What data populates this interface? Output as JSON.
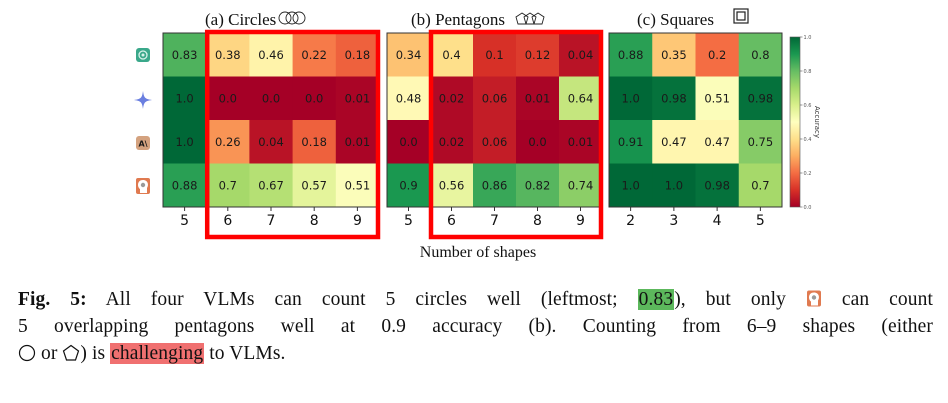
{
  "chart_data": [
    {
      "type": "heatmap",
      "title": "(a) Circles",
      "title_icon": "overlapping-circles-icon",
      "categories": [
        "5",
        "6",
        "7",
        "8",
        "9"
      ],
      "rows": [
        "gpt-model",
        "gemini-model",
        "claude-model",
        "sonnet-model"
      ],
      "values": [
        [
          0.83,
          0.38,
          0.46,
          0.22,
          0.18
        ],
        [
          1.0,
          0.0,
          0.0,
          0.0,
          0.01
        ],
        [
          1.0,
          0.26,
          0.04,
          0.18,
          0.01
        ],
        [
          0.88,
          0.7,
          0.67,
          0.57,
          0.51
        ]
      ],
      "labels": [
        [
          "0.83",
          "0.38",
          "0.46",
          "0.22",
          "0.18"
        ],
        [
          "1.0",
          "0.0",
          "0.0",
          "0.0",
          "0.01"
        ],
        [
          "1.0",
          "0.26",
          "0.04",
          "0.18",
          "0.01"
        ],
        [
          "0.88",
          "0.7",
          "0.67",
          "0.57",
          "0.51"
        ]
      ],
      "highlight_columns": [
        "6",
        "7",
        "8",
        "9"
      ]
    },
    {
      "type": "heatmap",
      "title": "(b) Pentagons",
      "title_icon": "overlapping-pentagons-icon",
      "categories": [
        "5",
        "6",
        "7",
        "8",
        "9"
      ],
      "rows": [
        "gpt-model",
        "gemini-model",
        "claude-model",
        "sonnet-model"
      ],
      "values": [
        [
          0.34,
          0.4,
          0.1,
          0.12,
          0.04
        ],
        [
          0.48,
          0.02,
          0.06,
          0.01,
          0.64
        ],
        [
          0.0,
          0.02,
          0.06,
          0.0,
          0.01
        ],
        [
          0.9,
          0.56,
          0.86,
          0.82,
          0.74
        ]
      ],
      "labels": [
        [
          "0.34",
          "0.4",
          "0.1",
          "0.12",
          "0.04"
        ],
        [
          "0.48",
          "0.02",
          "0.06",
          "0.01",
          "0.64"
        ],
        [
          "0.0",
          "0.02",
          "0.06",
          "0.0",
          "0.01"
        ],
        [
          "0.9",
          "0.56",
          "0.86",
          "0.82",
          "0.74"
        ]
      ],
      "highlight_columns": [
        "6",
        "7",
        "8",
        "9"
      ]
    },
    {
      "type": "heatmap",
      "title": "(c) Squares",
      "title_icon": "nested-squares-icon",
      "categories": [
        "2",
        "3",
        "4",
        "5"
      ],
      "rows": [
        "gpt-model",
        "gemini-model",
        "claude-model",
        "sonnet-model"
      ],
      "values": [
        [
          0.88,
          0.35,
          0.2,
          0.8
        ],
        [
          1.0,
          0.98,
          0.51,
          0.98
        ],
        [
          0.91,
          0.47,
          0.47,
          0.75
        ],
        [
          1.0,
          1.0,
          0.98,
          0.7
        ]
      ],
      "labels": [
        [
          "0.88",
          "0.35",
          "0.2",
          "0.8"
        ],
        [
          "1.0",
          "0.98",
          "0.51",
          "0.98"
        ],
        [
          "0.91",
          "0.47",
          "0.47",
          "0.75"
        ],
        [
          "1.0",
          "1.0",
          "0.98",
          "0.7"
        ]
      ],
      "highlight_columns": []
    }
  ],
  "shared": {
    "xlabel": "Number of shapes",
    "colorbar": {
      "label": "Accuracy",
      "range": [
        0.0,
        1.0
      ],
      "ticks": [
        "0.0",
        "0.2",
        "0.4",
        "0.6",
        "0.8",
        "1.0"
      ],
      "colormap": "RdYlGn"
    },
    "row_icons": [
      "gpt-icon",
      "gemini-icon",
      "claude-icon",
      "sonnet-icon"
    ],
    "highlight_color": "#ff0000"
  },
  "caption": {
    "fig_label": "Fig. 5:",
    "line1_a": "All four VLMs can count 5 circles well (leftmost; ",
    "line1_highlight": "0.83",
    "line1_b": "), but only ",
    "line1_c": " can count",
    "line2": "5 overlapping pentagons well at 0.9 accuracy (b). Counting from 6–9 shapes (either",
    "line3_a": " or ",
    "line3_b": ") is ",
    "line3_highlight": "challenging",
    "line3_c": " to VLMs.",
    "colors": {
      "green_highlight": "#5cb85c",
      "red_highlight": "#f07070"
    }
  }
}
